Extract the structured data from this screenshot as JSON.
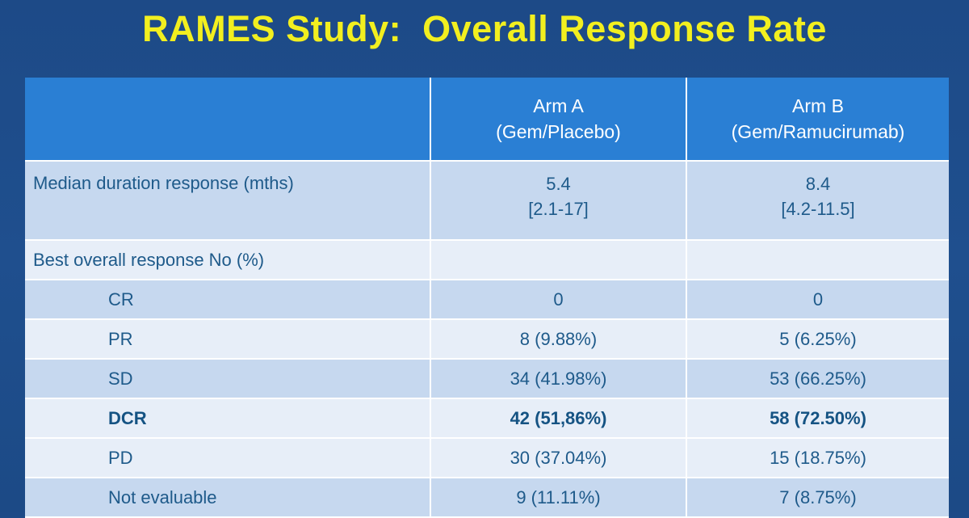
{
  "title": "RAMES Study:  Overall Response Rate",
  "table": {
    "header": {
      "col1": "",
      "arm_a_line1": "Arm A",
      "arm_a_line2": "(Gem/Placebo)",
      "arm_b_line1": "Arm B",
      "arm_b_line2": "(Gem/Ramucirumab)"
    },
    "rows": [
      {
        "label": "Median duration response (mths)",
        "a_line1": "5.4",
        "a_line2": "[2.1-17]",
        "b_line1": "8.4",
        "b_line2": "[4.2-11.5]"
      },
      {
        "label": "Best overall response No (%)",
        "a": "",
        "b": ""
      },
      {
        "label": "CR",
        "a": "0",
        "b": "0"
      },
      {
        "label": "PR",
        "a": "8 (9.88%)",
        "b": "5 (6.25%)"
      },
      {
        "label": "SD",
        "a": "34 (41.98%)",
        "b": "53 (66.25%)"
      },
      {
        "label": "DCR",
        "a": "42 (51,86%)",
        "b": "58 (72.50%)"
      },
      {
        "label": "PD",
        "a": "30 (37.04%)",
        "b": "15 (18.75%)"
      },
      {
        "label": "Not evaluable",
        "a": "9 (11.11%)",
        "b": "7 (8.75%)"
      }
    ]
  },
  "colors": {
    "background": "#1f4e8c",
    "title": "#f2ef1f",
    "header": "#2a7fd4",
    "row_dark": "#c6d8ef",
    "row_light": "#e7eef8",
    "text": "#1e5a8a"
  }
}
